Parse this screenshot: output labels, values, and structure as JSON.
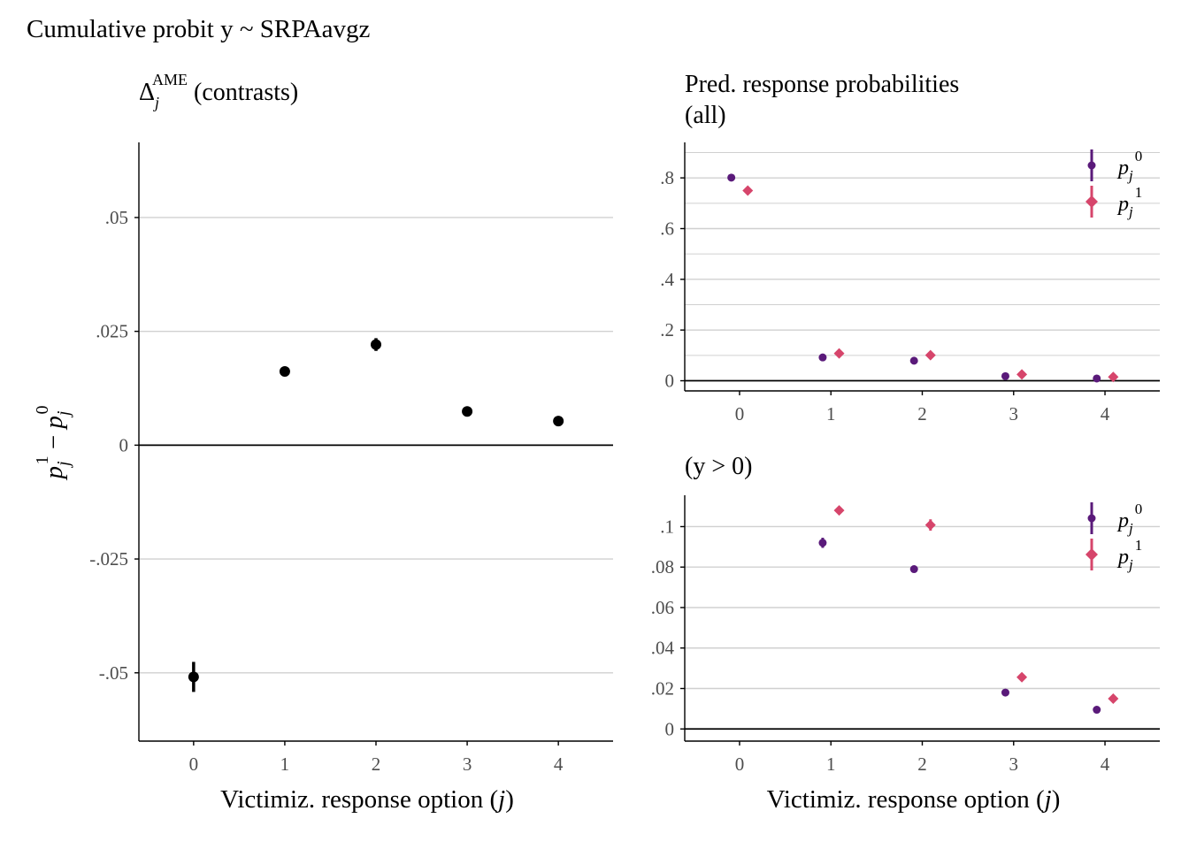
{
  "figure": {
    "title": "Cumulative probit y ~ SRPAavgz"
  },
  "chart_data": [
    {
      "type": "scatter",
      "panel": "contrasts",
      "title": "Δj^AME (contrasts)",
      "title_parts": {
        "base": "Δ",
        "sub": "j",
        "sup": "AME",
        "rest": " (contrasts)"
      },
      "xlabel": "Victimiz. response option (j)",
      "xlabel_parts": {
        "pre": "Victimiz. response option (",
        "var": "j",
        "post": ")"
      },
      "ylabel": "pj1 − pj0",
      "ylabel_parts": {
        "p": "p",
        "sub": "j",
        "sup1": "1",
        "minus": " − ",
        "sup0": "0"
      },
      "x_ticks": [
        "0",
        "1",
        "2",
        "3",
        "4"
      ],
      "y_ticks": [
        {
          "v": -0.05,
          "label": "-.05"
        },
        {
          "v": -0.025,
          "label": "-.025"
        },
        {
          "v": 0,
          "label": "0"
        },
        {
          "v": 0.025,
          "label": ".025"
        },
        {
          "v": 0.05,
          "label": ".05"
        }
      ],
      "xlim": [
        -0.6,
        4.6
      ],
      "ylim": [
        -0.065,
        0.0665
      ],
      "grid": true,
      "series": [
        {
          "color": "#000000",
          "points": [
            {
              "x": 0,
              "y": -0.0509,
              "lo": -0.0542,
              "hi": -0.0476
            },
            {
              "x": 1,
              "y": 0.0162,
              "lo": 0.0153,
              "hi": 0.0171
            },
            {
              "x": 2,
              "y": 0.0221,
              "lo": 0.0207,
              "hi": 0.0235
            },
            {
              "x": 3,
              "y": 0.0074,
              "lo": 0.0068,
              "hi": 0.008
            },
            {
              "x": 4,
              "y": 0.0053,
              "lo": 0.0048,
              "hi": 0.0058
            }
          ]
        }
      ]
    },
    {
      "type": "scatter",
      "panel": "probs-all",
      "title": "Pred. response probabilities",
      "title_line2": "(all)",
      "xlabel": "",
      "x_ticks": [
        "0",
        "1",
        "2",
        "3",
        "4"
      ],
      "y_ticks": [
        {
          "v": 0,
          "label": "0"
        },
        {
          "v": 0.2,
          "label": ".2"
        },
        {
          "v": 0.4,
          "label": ".4"
        },
        {
          "v": 0.6,
          "label": ".6"
        },
        {
          "v": 0.8,
          "label": ".8"
        }
      ],
      "xlim": [
        -0.6,
        4.6
      ],
      "ylim": [
        -0.04,
        0.94
      ],
      "grid": true,
      "legend": "top-right",
      "series": [
        {
          "name": "pj0",
          "color": "#5a1a7a",
          "marker": "circle",
          "offset": -0.09,
          "points": [
            {
              "x": 0,
              "y": 0.801
            },
            {
              "x": 1,
              "y": 0.092
            },
            {
              "x": 2,
              "y": 0.079
            },
            {
              "x": 3,
              "y": 0.018
            },
            {
              "x": 4,
              "y": 0.009
            }
          ]
        },
        {
          "name": "pj1",
          "color": "#d6456b",
          "marker": "diamond",
          "offset": 0.09,
          "points": [
            {
              "x": 0,
              "y": 0.75
            },
            {
              "x": 1,
              "y": 0.108
            },
            {
              "x": 2,
              "y": 0.101
            },
            {
              "x": 3,
              "y": 0.025
            },
            {
              "x": 4,
              "y": 0.015
            }
          ]
        }
      ]
    },
    {
      "type": "scatter",
      "panel": "probs-pos",
      "title": "(y > 0)",
      "xlabel": "Victimiz. response option (j)",
      "xlabel_parts": {
        "pre": "Victimiz. response option (",
        "var": "j",
        "post": ")"
      },
      "x_ticks": [
        "0",
        "1",
        "2",
        "3",
        "4"
      ],
      "y_ticks": [
        {
          "v": 0,
          "label": "0"
        },
        {
          "v": 0.02,
          "label": ".02"
        },
        {
          "v": 0.04,
          "label": ".04"
        },
        {
          "v": 0.06,
          "label": ".06"
        },
        {
          "v": 0.08,
          "label": ".08"
        },
        {
          "v": 0.1,
          "label": ".1"
        }
      ],
      "xlim": [
        -0.6,
        4.6
      ],
      "ylim": [
        -0.006,
        0.1155
      ],
      "grid": true,
      "legend": "top-right",
      "series": [
        {
          "name": "pj0",
          "color": "#5a1a7a",
          "marker": "circle",
          "offset": -0.09,
          "points": [
            {
              "x": 1,
              "y": 0.092,
              "lo": 0.0895,
              "hi": 0.0945
            },
            {
              "x": 2,
              "y": 0.079
            },
            {
              "x": 3,
              "y": 0.018
            },
            {
              "x": 4,
              "y": 0.0095
            }
          ]
        },
        {
          "name": "pj1",
          "color": "#d6456b",
          "marker": "diamond",
          "offset": 0.09,
          "points": [
            {
              "x": 1,
              "y": 0.108
            },
            {
              "x": 2,
              "y": 0.1008,
              "lo": 0.098,
              "hi": 0.1036
            },
            {
              "x": 3,
              "y": 0.0256
            },
            {
              "x": 4,
              "y": 0.015
            }
          ]
        }
      ]
    }
  ]
}
